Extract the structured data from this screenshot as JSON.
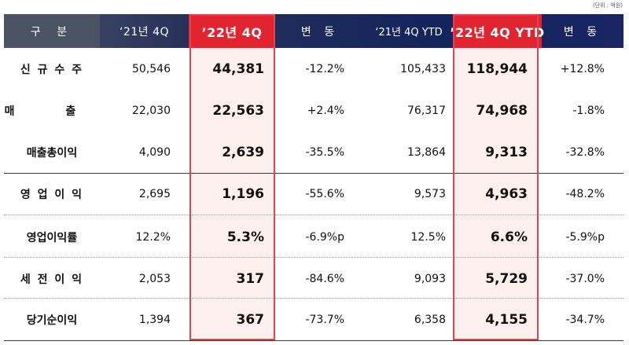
{
  "unit_note": "(단위 : 억원)",
  "headers": [
    "구 분",
    "‘21년 4Q",
    "’22년 4Q",
    "변 동",
    "‘21년 4Q YTD",
    "’22년 4Q YTD",
    "변 동"
  ],
  "rows": [
    {
      "label": "신 규 수 주",
      "q4_21": "50,546",
      "q4_22": "44,381",
      "chg1": "-12.2%",
      "ytd_21": "105,433",
      "ytd_22": "118,944",
      "chg2": "+12.8%"
    },
    {
      "label": "매 출",
      "q4_21": "22,030",
      "q4_22": "22,563",
      "chg1": "+2.4%",
      "ytd_21": "76,317",
      "ytd_22": "74,968",
      "chg2": "-1.8%"
    },
    {
      "label": "매출총이익",
      "q4_21": "4,090",
      "q4_22": "2,639",
      "chg1": "-35.5%",
      "ytd_21": "13,864",
      "ytd_22": "9,313",
      "chg2": "-32.8%"
    },
    {
      "label": "영 업 이 익",
      "q4_21": "2,695",
      "q4_22": "1,196",
      "chg1": "-55.6%",
      "ytd_21": "9,573",
      "ytd_22": "4,963",
      "chg2": "-48.2%"
    },
    {
      "label": "영업이익률",
      "q4_21": "12.2%",
      "q4_22": "5.3%",
      "chg1": "-6.9%p",
      "ytd_21": "12.5%",
      "ytd_22": "6.6%",
      "chg2": "-5.9%p"
    },
    {
      "label": "세 전 이 익",
      "q4_21": "2,053",
      "q4_22": "317",
      "chg1": "-84.6%",
      "ytd_21": "9,093",
      "ytd_22": "5,729",
      "chg2": "-37.0%"
    },
    {
      "label": "당기순이익",
      "q4_21": "1,394",
      "q4_22": "367",
      "chg1": "-73.7%",
      "ytd_21": "6,358",
      "ytd_22": "4,155",
      "chg2": "-34.7%"
    }
  ],
  "colors": {
    "header_dark": "#1a2563",
    "header_first": "#4c5463",
    "highlight_red": "#e1242f",
    "highlight_bg": "#fff0f0"
  }
}
